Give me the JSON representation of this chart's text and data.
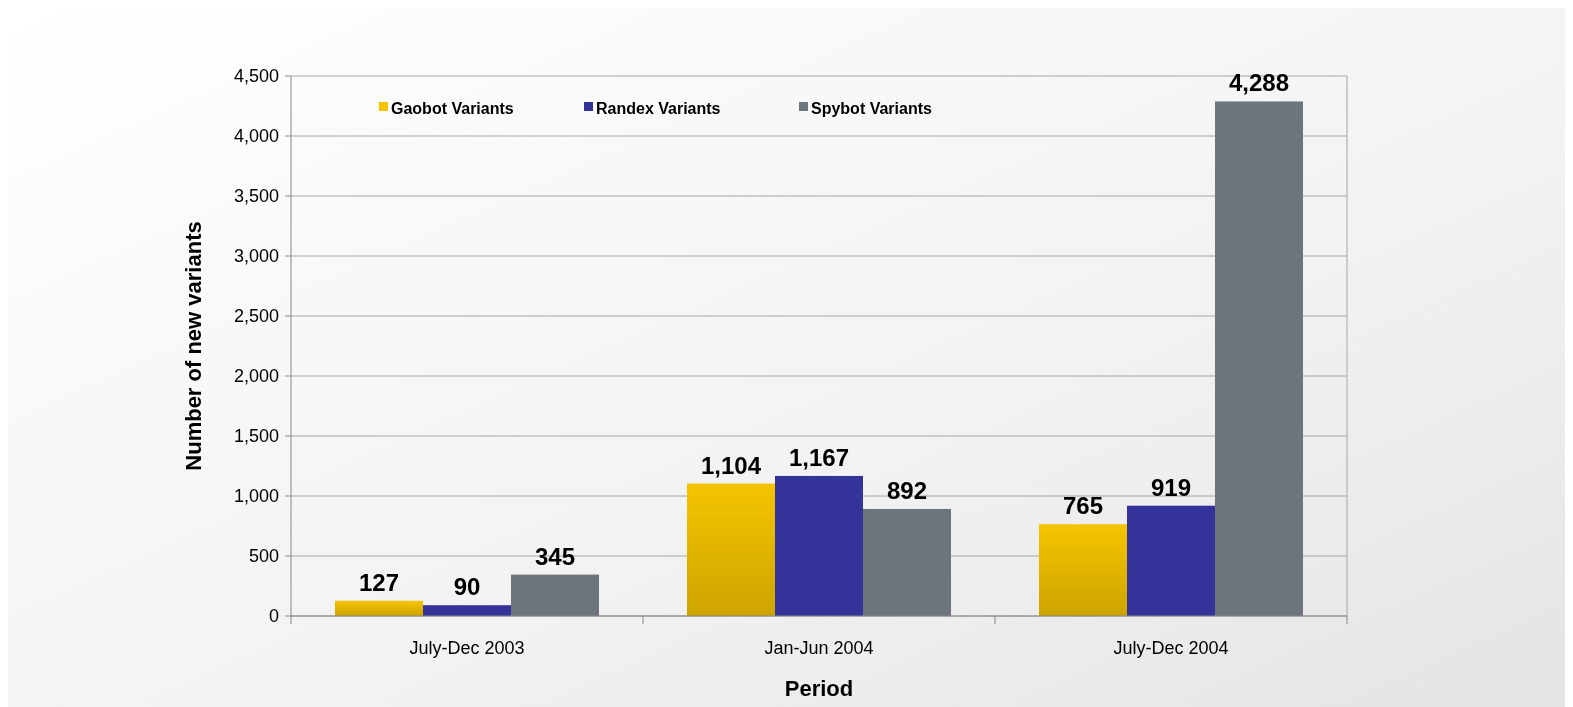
{
  "chart_data": {
    "type": "bar",
    "xlabel": "Period",
    "ylabel": "Number of new variants",
    "categories": [
      "July-Dec 2003",
      "Jan-Jun 2004",
      "July-Dec 2004"
    ],
    "series": [
      {
        "name": "Gaobot Variants",
        "color": "#f5c400",
        "values": [
          127,
          1104,
          765
        ],
        "value_labels": [
          "127",
          "1,104",
          "765"
        ]
      },
      {
        "name": "Randex Variants",
        "color": "#333399",
        "values": [
          90,
          1167,
          919
        ],
        "value_labels": [
          "90",
          "1,167",
          "919"
        ]
      },
      {
        "name": "Spybot Variants",
        "color": "#6d757c",
        "values": [
          345,
          892,
          4288
        ],
        "value_labels": [
          "345",
          "892",
          "4,288"
        ]
      }
    ],
    "ylim": [
      0,
      4500
    ],
    "yticks": [
      {
        "value": 0,
        "label": "0"
      },
      {
        "value": 500,
        "label": "500"
      },
      {
        "value": 1000,
        "label": "1,000"
      },
      {
        "value": 1500,
        "label": "1,500"
      },
      {
        "value": 2000,
        "label": "2,000"
      },
      {
        "value": 2500,
        "label": "2,500"
      },
      {
        "value": 3000,
        "label": "3,000"
      },
      {
        "value": 3500,
        "label": "3,500"
      },
      {
        "value": 4000,
        "label": "4,000"
      },
      {
        "value": 4500,
        "label": "4,500"
      }
    ],
    "grid": "y",
    "legend": "top left"
  }
}
